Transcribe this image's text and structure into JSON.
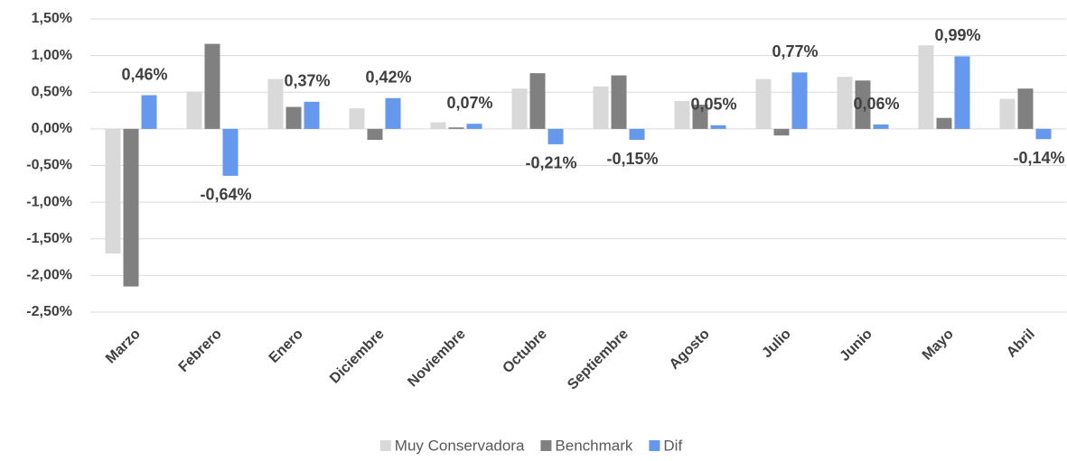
{
  "chart_data": {
    "type": "bar",
    "categories": [
      "Marzo",
      "Febrero",
      "Enero",
      "Diciembre",
      "Noviembre",
      "Octubre",
      "Septiembre",
      "Agosto",
      "Julio",
      "Junio",
      "Mayo",
      "Abril"
    ],
    "series": [
      {
        "name": "Muy Conservadora",
        "color": "#d9d9d9",
        "values": [
          -1.7,
          0.51,
          0.68,
          0.28,
          0.09,
          0.55,
          0.58,
          0.38,
          0.68,
          0.71,
          1.14,
          0.41
        ]
      },
      {
        "name": "Benchmark",
        "color": "#808080",
        "values": [
          -2.15,
          1.16,
          0.3,
          -0.15,
          0.02,
          0.76,
          0.73,
          0.33,
          -0.09,
          0.66,
          0.15,
          0.55
        ]
      },
      {
        "name": "Dif",
        "color": "#6699ee",
        "values": [
          0.46,
          -0.64,
          0.37,
          0.42,
          0.07,
          -0.21,
          -0.15,
          0.05,
          0.77,
          0.06,
          0.99,
          -0.14
        ],
        "value_labels": [
          "0,46%",
          "-0,64%",
          "0,37%",
          "0,42%",
          "0,07%",
          "-0,21%",
          "-0,15%",
          "0,05%",
          "0,77%",
          "0,06%",
          "0,99%",
          "-0,14%"
        ]
      }
    ],
    "ylim": [
      -2.5,
      1.5
    ],
    "yticks": [
      {
        "value": 1.5,
        "label": "1,50%"
      },
      {
        "value": 1.0,
        "label": "1,00%"
      },
      {
        "value": 0.5,
        "label": "0,50%"
      },
      {
        "value": 0,
        "label": "0,00%"
      },
      {
        "value": -0.5,
        "label": "-0,50%"
      },
      {
        "value": -1.0,
        "label": "-1,00%"
      },
      {
        "value": -1.5,
        "label": "-1,50%"
      },
      {
        "value": -2.0,
        "label": "-2,00%"
      },
      {
        "value": -2.5,
        "label": "-2,50%"
      }
    ],
    "grid": true,
    "legend": "bottom"
  }
}
